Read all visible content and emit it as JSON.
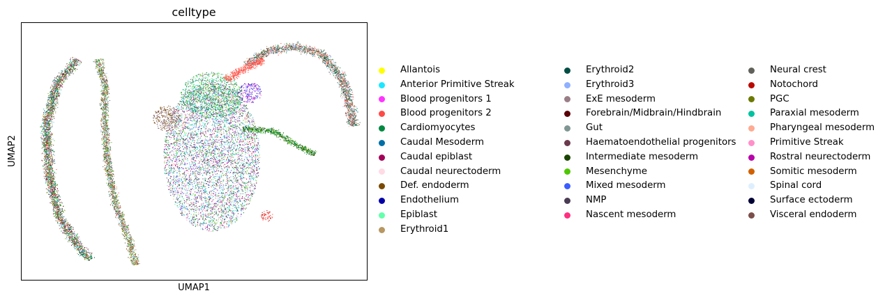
{
  "chart_data": {
    "type": "scatter",
    "title": "celltype",
    "xlabel": "UMAP1",
    "ylabel": "UMAP2",
    "xlim": [
      0,
      100
    ],
    "ylim": [
      0,
      100
    ],
    "grid": false,
    "ticks": "none",
    "legend_placement": "right, 3 columns",
    "series": [
      {
        "name": "Allantois",
        "color": "#ffff00"
      },
      {
        "name": "Anterior Primitive Streak",
        "color": "#1ce6ff"
      },
      {
        "name": "Blood progenitors 1",
        "color": "#ff34ff"
      },
      {
        "name": "Blood progenitors 2",
        "color": "#ff4a46"
      },
      {
        "name": "Cardiomyocytes",
        "color": "#008941"
      },
      {
        "name": "Caudal Mesoderm",
        "color": "#006fa6"
      },
      {
        "name": "Caudal epiblast",
        "color": "#a30059"
      },
      {
        "name": "Caudal neurectoderm",
        "color": "#ffdbe5"
      },
      {
        "name": "Def. endoderm",
        "color": "#7a4900"
      },
      {
        "name": "Endothelium",
        "color": "#0000a6"
      },
      {
        "name": "Epiblast",
        "color": "#63ffac"
      },
      {
        "name": "Erythroid1",
        "color": "#b79762"
      },
      {
        "name": "Erythroid2",
        "color": "#004d43"
      },
      {
        "name": "Erythroid3",
        "color": "#8fb0ff"
      },
      {
        "name": "ExE mesoderm",
        "color": "#997d87"
      },
      {
        "name": "Forebrain/Midbrain/Hindbrain",
        "color": "#5a0007"
      },
      {
        "name": "Gut",
        "color": "#809693"
      },
      {
        "name": "Haematoendothelial progenitors",
        "color": "#6a3a4c"
      },
      {
        "name": "Intermediate mesoderm",
        "color": "#1b4400"
      },
      {
        "name": "Mesenchyme",
        "color": "#4fc601"
      },
      {
        "name": "Mixed mesoderm",
        "color": "#3b5dff"
      },
      {
        "name": "NMP",
        "color": "#4a3b53"
      },
      {
        "name": "Nascent mesoderm",
        "color": "#ff2f80"
      },
      {
        "name": "Neural crest",
        "color": "#61615a"
      },
      {
        "name": "Notochord",
        "color": "#ba0900"
      },
      {
        "name": "PGC",
        "color": "#6b7900"
      },
      {
        "name": "Paraxial mesoderm",
        "color": "#00c2a0"
      },
      {
        "name": "Pharyngeal mesoderm",
        "color": "#ffaa92"
      },
      {
        "name": "Primitive Streak",
        "color": "#ff90c9"
      },
      {
        "name": "Rostral neurectoderm",
        "color": "#b903aa"
      },
      {
        "name": "Somitic mesoderm",
        "color": "#d16100"
      },
      {
        "name": "Spinal cord",
        "color": "#ddefff"
      },
      {
        "name": "Surface ectoderm",
        "color": "#000035"
      },
      {
        "name": "Visceral endoderm",
        "color": "#7b4f4b"
      }
    ],
    "clusters": [
      {
        "name": "left-arc",
        "path": [
          [
            16,
            86
          ],
          [
            10,
            76
          ],
          [
            7,
            60
          ],
          [
            8,
            40
          ],
          [
            11,
            24
          ],
          [
            17,
            12
          ],
          [
            20,
            8
          ]
        ],
        "width": 4.5,
        "colors": [
          "#b79762",
          "#8fb0ff",
          "#7a4900",
          "#008941",
          "#61615a",
          "#ff4a46",
          "#00c2a0",
          "#a30059",
          "#4fc601",
          "#004d43"
        ]
      },
      {
        "name": "inner-arc",
        "path": [
          [
            22,
            86
          ],
          [
            24,
            76
          ],
          [
            24,
            60
          ],
          [
            25,
            44
          ],
          [
            27,
            30
          ],
          [
            31,
            16
          ],
          [
            33,
            6
          ]
        ],
        "width": 3.5,
        "colors": [
          "#b79762",
          "#8fb0ff",
          "#008941",
          "#7a4900",
          "#ff4a46",
          "#61615a",
          "#4fc601",
          "#ddefff"
        ]
      },
      {
        "name": "right-arc",
        "path": [
          [
            65,
            84
          ],
          [
            71,
            89
          ],
          [
            79,
            91
          ],
          [
            87,
            88
          ],
          [
            93,
            78
          ],
          [
            95,
            68
          ],
          [
            96,
            60
          ]
        ],
        "width": 4.5,
        "colors": [
          "#b79762",
          "#8fb0ff",
          "#008941",
          "#ff4a46",
          "#61615a",
          "#004d43",
          "#ffaa92"
        ]
      },
      {
        "name": "main-blob",
        "ellipse": [
          55,
          48,
          14,
          29
        ],
        "colors": [
          "#a30059",
          "#00c2a0",
          "#63ffac",
          "#ddefff",
          "#6a3a4c",
          "#4a3b53",
          "#ff90c9",
          "#8fb0ff",
          "#008941",
          "#b903aa",
          "#4fc601",
          "#ffaa92",
          "#1ce6ff",
          "#3b5dff"
        ]
      },
      {
        "name": "upper-blob",
        "ellipse": [
          55,
          72,
          9,
          9
        ],
        "colors": [
          "#63ffac",
          "#00c2a0",
          "#008941",
          "#61615a",
          "#809693",
          "#4fc601"
        ]
      },
      {
        "name": "red-bridge",
        "path": [
          [
            59,
            78
          ],
          [
            64,
            82
          ],
          [
            70,
            86
          ]
        ],
        "width": 4.5,
        "colors": [
          "#ff4a46",
          "#ffaa92",
          "#ff4a46"
        ]
      },
      {
        "name": "purple-cluster",
        "ellipse": [
          66,
          73,
          3.5,
          4
        ],
        "colors": [
          "#b903aa",
          "#0000a6",
          "#3b5dff",
          "#ff34ff"
        ]
      },
      {
        "name": "green-tail",
        "path": [
          [
            64,
            59
          ],
          [
            73,
            58
          ],
          [
            79,
            53
          ],
          [
            85,
            49
          ]
        ],
        "width": 3,
        "colors": [
          "#4fc601",
          "#6b7900",
          "#008941",
          "#1b4400",
          "#008941"
        ]
      },
      {
        "name": "brown-lobe",
        "ellipse": [
          42,
          63,
          4,
          5
        ],
        "colors": [
          "#7b4f4b",
          "#997d87",
          "#7a4900"
        ]
      },
      {
        "name": "red-spot",
        "ellipse": [
          71,
          25,
          1.8,
          2.2
        ],
        "colors": [
          "#ba0900",
          "#ff4a46"
        ]
      }
    ]
  }
}
